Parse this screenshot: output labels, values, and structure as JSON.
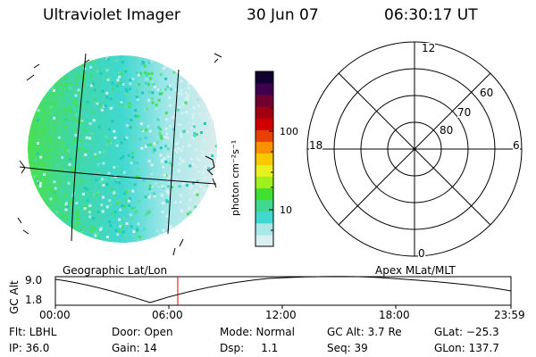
{
  "header": {
    "instrument": "Ultraviolet Imager",
    "date": "30 Jun 07",
    "time": "06:30:17 UT"
  },
  "colorbar": {
    "unit_label": "photon cm⁻²s⁻¹",
    "ticks": [
      "100",
      "10"
    ],
    "scale": "log",
    "colors": [
      "#d8f0f0",
      "#a8e8e8",
      "#40d8d0",
      "#40d890",
      "#40e030",
      "#a0f020",
      "#e8f020",
      "#f8c800",
      "#f89000",
      "#e84000",
      "#d00000",
      "#a00010",
      "#700030",
      "#400050",
      "#100030"
    ]
  },
  "image_panel": {
    "label": "Geographic Lat/Lon"
  },
  "polar_panel": {
    "label": "Apex MLat/MLT",
    "mlt_labels": {
      "top": "12",
      "left": "18",
      "right": "6",
      "bottom": "0"
    },
    "lat_labels": [
      "60",
      "70",
      "80"
    ]
  },
  "altitude_plot": {
    "ylabel": "GC Alt",
    "y_ticks": [
      "9.0",
      "1.8"
    ],
    "x_ticks": [
      "00:00",
      "06:00",
      "12:00",
      "18:00",
      "23:59"
    ],
    "current_time_marker": "06:30"
  },
  "status": {
    "flt": "Flt: LBHL",
    "door": "Door: Open",
    "mode": "Mode: Normal",
    "gc_alt": "GC Alt: 3.7 Re",
    "glat": "GLat: −25.3",
    "ip": "IP: 36.0",
    "gain": "Gain: 14",
    "dsp": "Dsp:     1.1",
    "seq": "Seq: 39",
    "glon": "GLon: 137.7"
  }
}
